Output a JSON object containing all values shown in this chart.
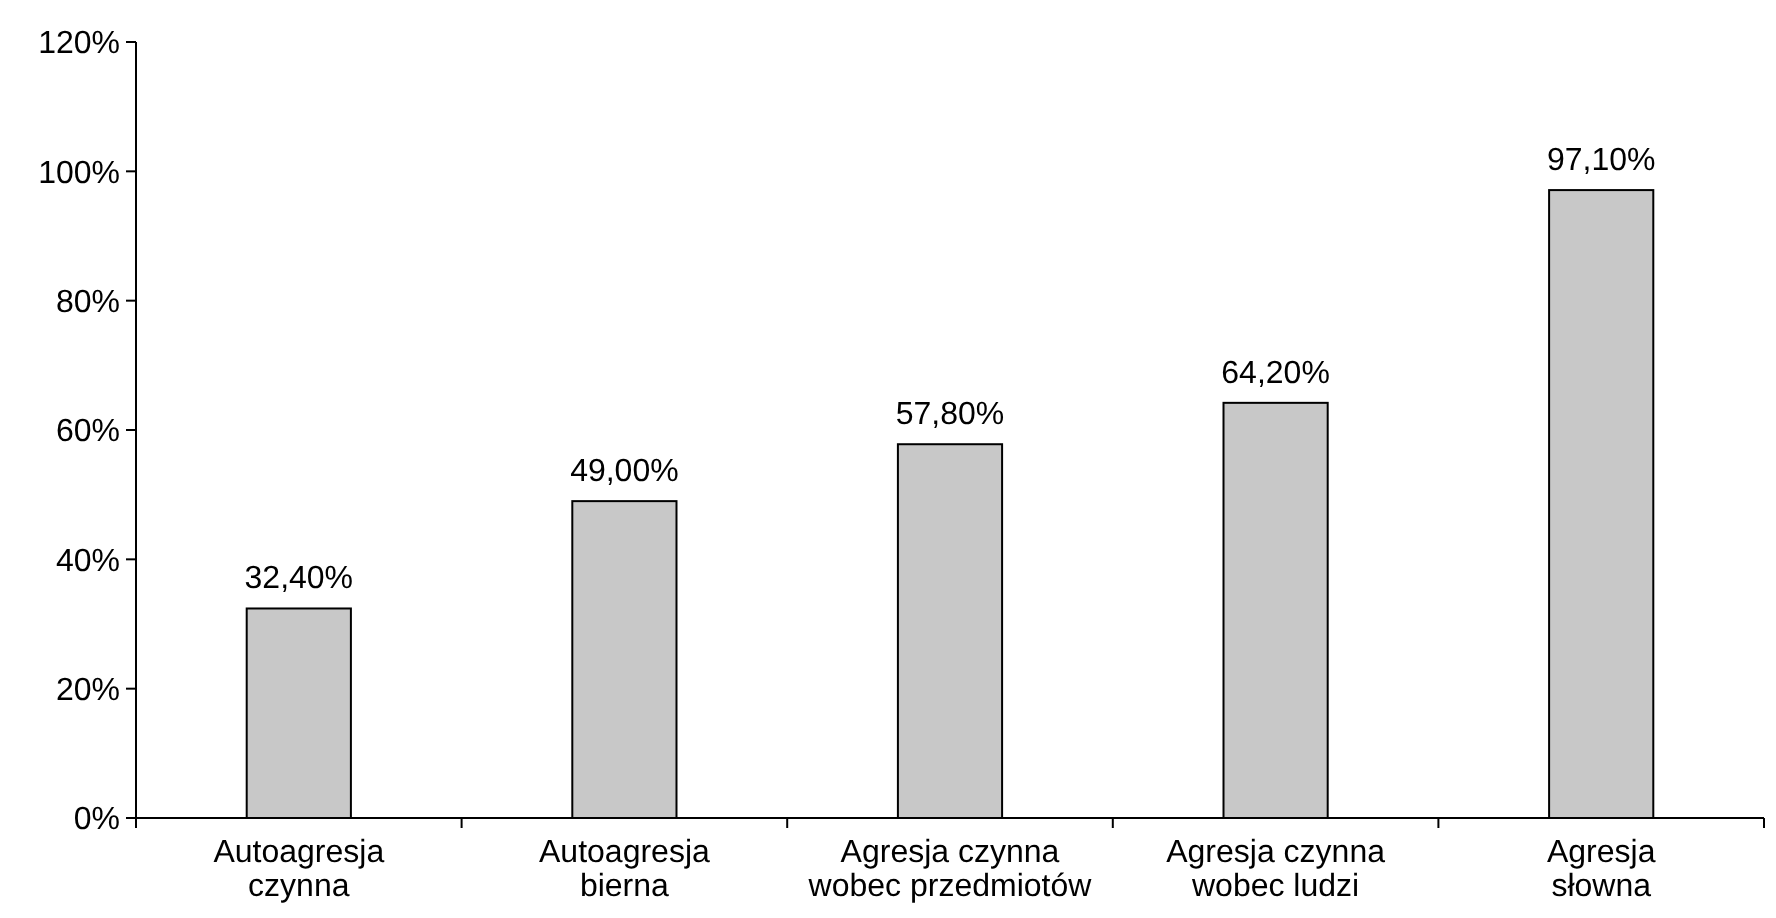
{
  "chart_data": {
    "type": "bar",
    "categories": [
      "Autoagresja\nczynna",
      "Autoagresja\nbierna",
      "Agresja czynna\nwobec przedmiotów",
      "Agresja czynna\nwobec ludzi",
      "Agresja\nsłowna"
    ],
    "values": [
      32.4,
      49.0,
      57.8,
      64.2,
      97.1
    ],
    "value_labels": [
      "32,40%",
      "49,00%",
      "57,80%",
      "64,20%",
      "97,10%"
    ],
    "color": "#c8c8c8",
    "ylim": [
      0,
      120
    ],
    "yticks": [
      {
        "value": 0,
        "label": "0%"
      },
      {
        "value": 20,
        "label": "20%"
      },
      {
        "value": 40,
        "label": "40%"
      },
      {
        "value": 60,
        "label": "60%"
      },
      {
        "value": 80,
        "label": "80%"
      },
      {
        "value": 100,
        "label": "100%"
      },
      {
        "value": 120,
        "label": "120%"
      }
    ],
    "grid": false
  }
}
